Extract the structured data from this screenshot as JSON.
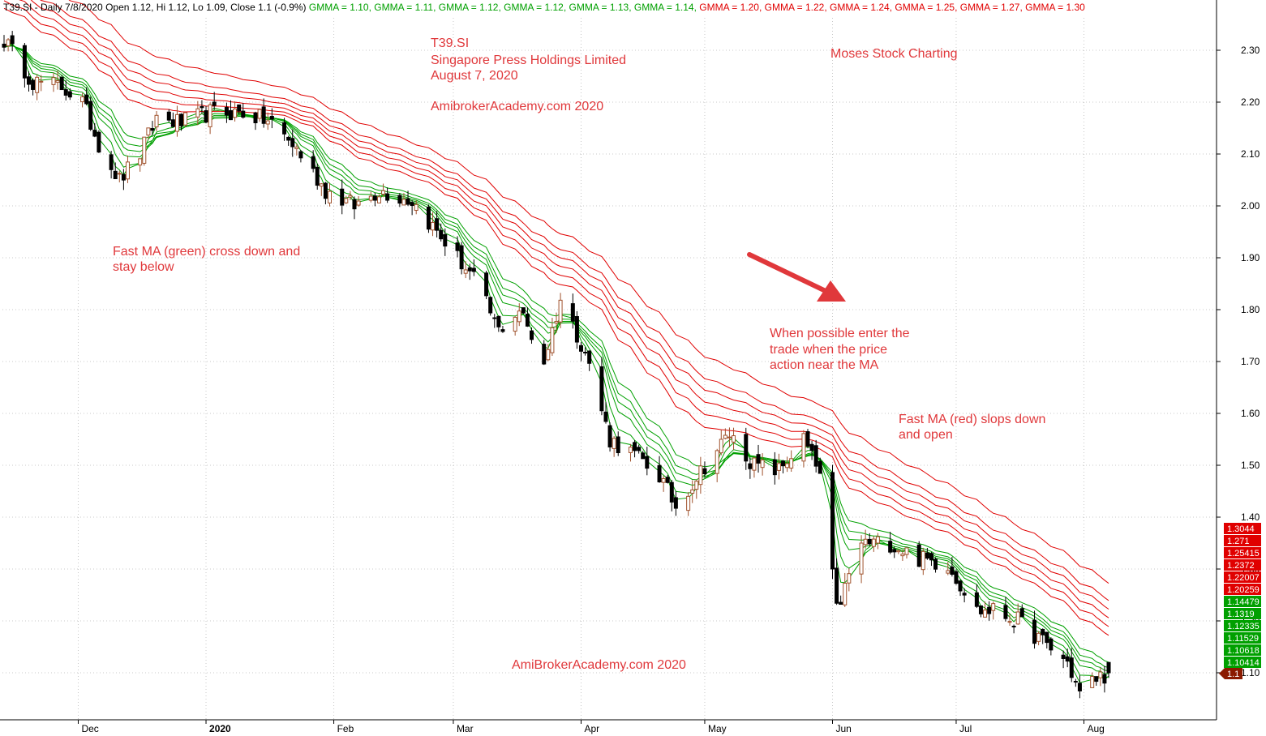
{
  "header": {
    "prefix": "T39.SI - Daily 7/8/2020 Open 1.12, Hi 1.12, Lo 1.09, Close 1.1 (-0.9%)",
    "gmma": [
      {
        "text": "GMMA = 1.10,",
        "color": "#00a000"
      },
      {
        "text": "GMMA = 1.11,",
        "color": "#00a000"
      },
      {
        "text": "GMMA = 1.12,",
        "color": "#00a000"
      },
      {
        "text": "GMMA = 1.12,",
        "color": "#00a000"
      },
      {
        "text": "GMMA = 1.13,",
        "color": "#00a000"
      },
      {
        "text": "GMMA = 1.14,",
        "color": "#00a000"
      },
      {
        "text": "GMMA = 1.20,",
        "color": "#e00000"
      },
      {
        "text": "GMMA = 1.22,",
        "color": "#e00000"
      },
      {
        "text": "GMMA = 1.24,",
        "color": "#e00000"
      },
      {
        "text": "GMMA = 1.25,",
        "color": "#e00000"
      },
      {
        "text": "GMMA = 1.27,",
        "color": "#e00000"
      },
      {
        "text": "GMMA = 1.30",
        "color": "#e00000"
      }
    ]
  },
  "annotations": {
    "ticker": "T39.SI",
    "company": "Singapore Press Holdings Limited",
    "date": "August 7, 2020",
    "site_top": "AmibrokerAcademy.com  2020",
    "brand": "Moses Stock Charting",
    "fast_green_1": "Fast MA (green) cross down and",
    "fast_green_2": "stay below",
    "enter_1": "When possible enter the",
    "enter_2": "trade when the price",
    "enter_3": "action near the MA",
    "red_1": "Fast MA (red) slops down",
    "red_2": "and open",
    "site_bottom": "AmiBrokerAcademy.com  2020"
  },
  "colors": {
    "annotation": "#e0383b",
    "fast_ma": "#00a000",
    "slow_ma": "#e00000",
    "up_candle": "#a0522d",
    "down_candle": "#000000",
    "grid": "#c8c8c8"
  },
  "chart_data": {
    "type": "candlestick",
    "ylim": [
      1.0,
      2.36
    ],
    "y_ticks": [
      "2.30",
      "2.20",
      "2.10",
      "2.00",
      "1.90",
      "1.80",
      "1.70",
      "1.60",
      "1.50",
      "1.40",
      "1.30",
      "1.20",
      "1.10"
    ],
    "y_tick_values": [
      2.3,
      2.2,
      2.1,
      2.0,
      1.9,
      1.8,
      1.7,
      1.6,
      1.5,
      1.4,
      1.3,
      1.2,
      1.1
    ],
    "x_ticks": [
      "Dec",
      "2020",
      "Feb",
      "Mar",
      "Apr",
      "May",
      "Jun",
      "Jul",
      "Aug"
    ],
    "x_range": [
      "2019-11-13",
      "2020-08-07"
    ],
    "grid": true,
    "price_anchors": [
      [
        "2019-11-13",
        2.32
      ],
      [
        "2019-11-20",
        2.24
      ],
      [
        "2019-11-27",
        2.23
      ],
      [
        "2019-12-02",
        2.2
      ],
      [
        "2019-12-06",
        2.12
      ],
      [
        "2019-12-11",
        2.05
      ],
      [
        "2019-12-16",
        2.1
      ],
      [
        "2019-12-20",
        2.17
      ],
      [
        "2019-12-26",
        2.16
      ],
      [
        "2020-01-02",
        2.18
      ],
      [
        "2020-01-10",
        2.18
      ],
      [
        "2020-01-17",
        2.16
      ],
      [
        "2020-01-23",
        2.11
      ],
      [
        "2020-01-30",
        2.03
      ],
      [
        "2020-02-06",
        2.0
      ],
      [
        "2020-02-12",
        2.03
      ],
      [
        "2020-02-20",
        2.01
      ],
      [
        "2020-02-28",
        1.93
      ],
      [
        "2020-03-06",
        1.86
      ],
      [
        "2020-03-12",
        1.76
      ],
      [
        "2020-03-17",
        1.8
      ],
      [
        "2020-03-23",
        1.7
      ],
      [
        "2020-03-27",
        1.82
      ],
      [
        "2020-04-02",
        1.72
      ],
      [
        "2020-04-08",
        1.55
      ],
      [
        "2020-04-14",
        1.52
      ],
      [
        "2020-04-20",
        1.48
      ],
      [
        "2020-04-24",
        1.42
      ],
      [
        "2020-05-01",
        1.5
      ],
      [
        "2020-05-07",
        1.56
      ],
      [
        "2020-05-13",
        1.5
      ],
      [
        "2020-05-19",
        1.49
      ],
      [
        "2020-05-25",
        1.55
      ],
      [
        "2020-05-29",
        1.48
      ],
      [
        "2020-06-02",
        1.22
      ],
      [
        "2020-06-08",
        1.35
      ],
      [
        "2020-06-15",
        1.35
      ],
      [
        "2020-06-22",
        1.32
      ],
      [
        "2020-06-29",
        1.31
      ],
      [
        "2020-07-06",
        1.22
      ],
      [
        "2020-07-10",
        1.22
      ],
      [
        "2020-07-16",
        1.2
      ],
      [
        "2020-07-22",
        1.16
      ],
      [
        "2020-07-28",
        1.12
      ],
      [
        "2020-07-31",
        1.06
      ],
      [
        "2020-08-04",
        1.09
      ],
      [
        "2020-08-07",
        1.1
      ]
    ],
    "slow_ma_last": [
      1.3044,
      1.271,
      1.25415,
      1.2372,
      1.22007,
      1.20259
    ],
    "fast_ma_last": [
      1.14479,
      1.1319,
      1.12335,
      1.11529,
      1.10618,
      1.10414
    ],
    "last_close": 1.1,
    "last_close_label": "1.1",
    "last_bar": {
      "open": 1.12,
      "high": 1.12,
      "low": 1.09,
      "close": 1.1
    }
  },
  "value_tags": {
    "slow": [
      "1.3044",
      "1.271",
      "1.25415",
      "1.2372",
      "1.22007",
      "1.20259"
    ],
    "fast": [
      "1.14479",
      "1.1319",
      "1.12335",
      "1.11529",
      "1.10618",
      "1.10414"
    ]
  }
}
